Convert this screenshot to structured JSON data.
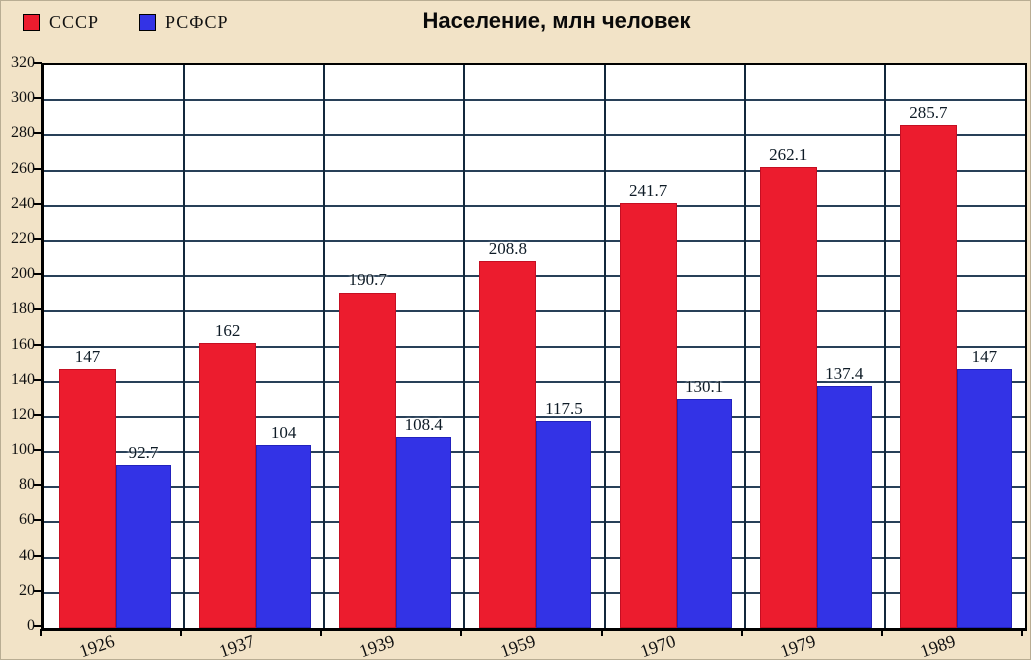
{
  "chart_data": {
    "type": "bar",
    "title": "Население, млн человек",
    "categories": [
      "1926",
      "1937",
      "1939",
      "1959",
      "1970",
      "1979",
      "1989"
    ],
    "series": [
      {
        "name": "СССР",
        "color": "#EC1C2E",
        "values": [
          147,
          162,
          190.7,
          208.8,
          241.7,
          262.1,
          285.7
        ]
      },
      {
        "name": "РСФСР",
        "color": "#3333E6",
        "values": [
          92.7,
          104,
          108.4,
          117.5,
          130.1,
          137.4,
          147
        ]
      }
    ],
    "ylim": [
      0,
      320
    ],
    "ytick_step": 20,
    "xlabel": "",
    "ylabel": "",
    "grid": true,
    "legend_position": "top-left"
  },
  "colors": {
    "background": "#F2E3C7",
    "plot_background": "#FFFFFF",
    "gridline": "#16304A",
    "axis": "#000000",
    "series_ussr": "#EC1C2E",
    "series_rsfsr": "#3333E6"
  }
}
